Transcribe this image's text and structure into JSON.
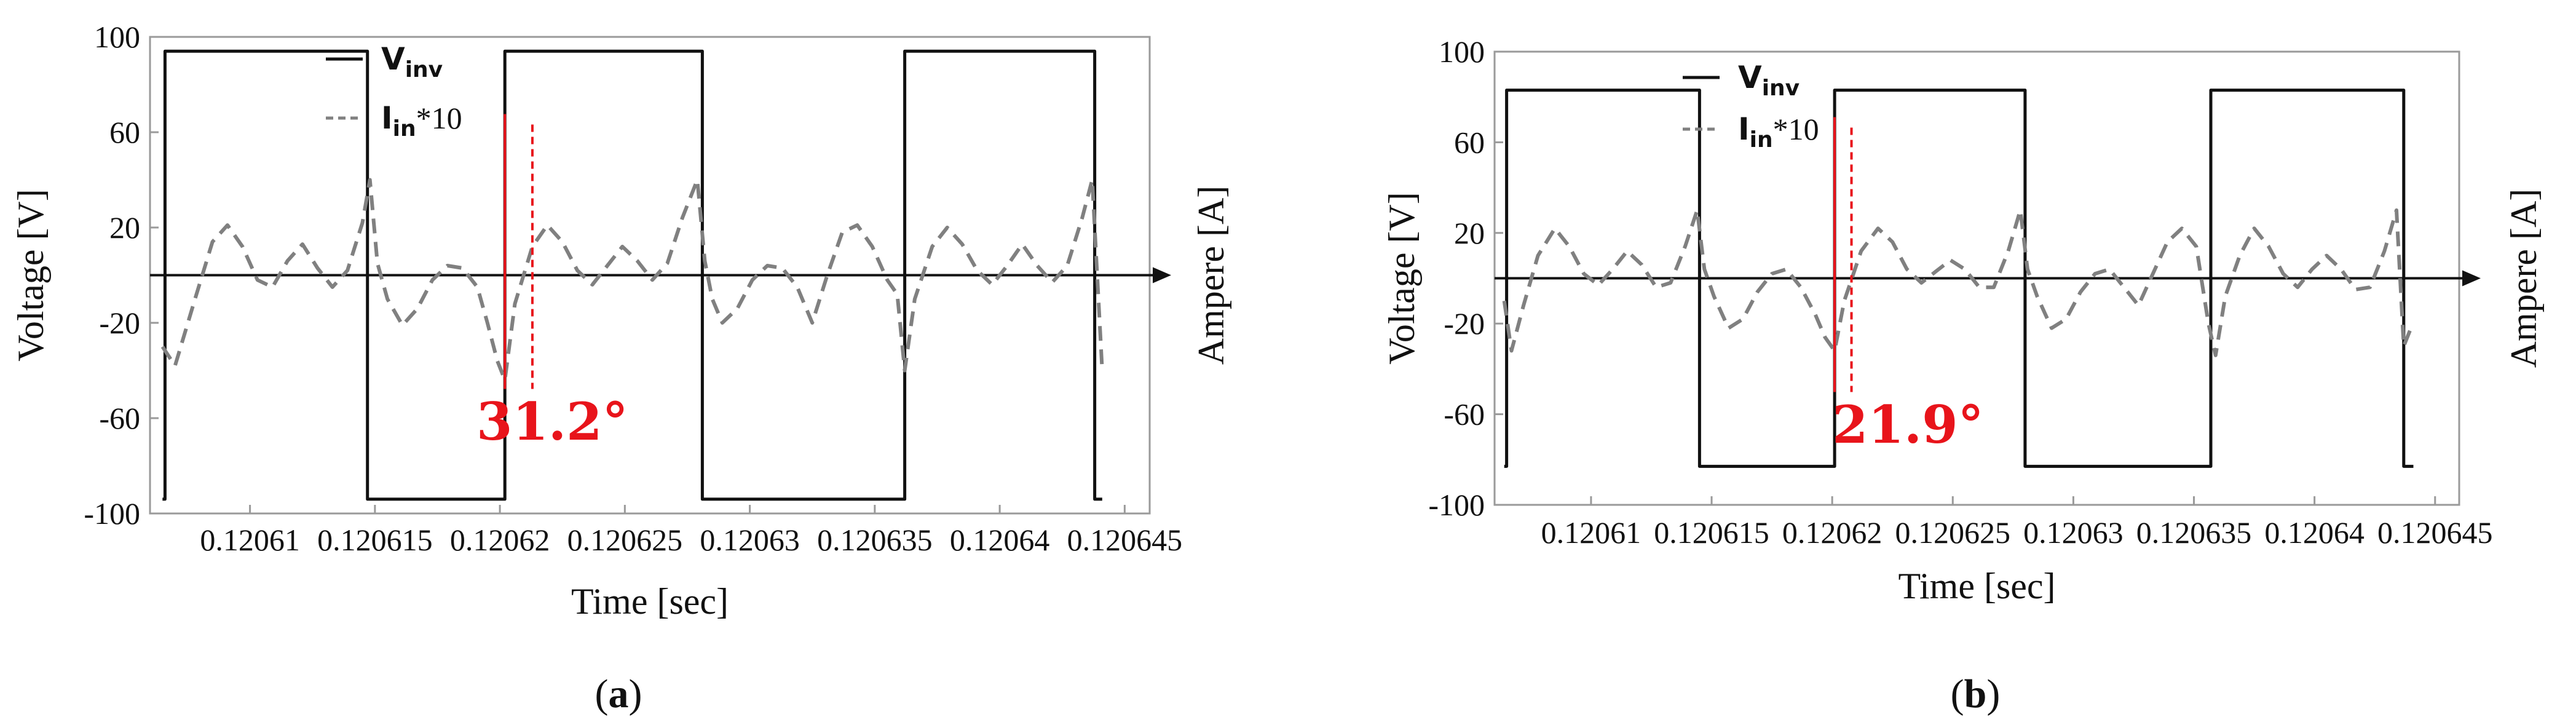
{
  "chart_data": [
    {
      "type": "line",
      "panel_label": "(a)",
      "xlabel": "Time [sec]",
      "ylabel": "Voltage [V]",
      "y2label": "Ampere [A]",
      "xlim": [
        0.120606,
        0.120646
      ],
      "ylim": [
        -100,
        100
      ],
      "x_ticks": [
        "0.12061",
        "0.120615",
        "0.12062",
        "0.120625",
        "0.12063",
        "0.120635",
        "0.12064",
        "0.120645"
      ],
      "x_tick_values": [
        0.12061,
        0.120615,
        0.12062,
        0.120625,
        0.12063,
        0.120635,
        0.12064,
        0.120645
      ],
      "y_ticks": [
        "100",
        "60",
        "20",
        "-20",
        "-60",
        "-100"
      ],
      "y_tick_values": [
        100,
        60,
        20,
        -20,
        -60,
        -100
      ],
      "grid": false,
      "legend_position": "top-right",
      "phase_annotation": {
        "text": "31.2°",
        "color": "#e8141b",
        "x_values": [
          0.1206202,
          0.1206213
        ]
      },
      "series": [
        {
          "name": "V_inv",
          "legend_main": "V",
          "legend_sub": "inv",
          "legend_suffix": "",
          "style": "solid",
          "color": "#111111",
          "x": [
            0.1206065,
            0.1206066,
            0.1206066,
            0.1206147,
            0.1206147,
            0.1206202,
            0.1206202,
            0.1206281,
            0.1206281,
            0.1206362,
            0.1206362,
            0.1206438,
            0.1206438,
            0.1206441
          ],
          "y": [
            -94,
            -94,
            94,
            94,
            -94,
            -94,
            94,
            94,
            -94,
            -94,
            94,
            94,
            -94,
            -94
          ]
        },
        {
          "name": "I_in*10",
          "legend_main": "I",
          "legend_sub": "in",
          "legend_suffix": "*10",
          "style": "dashed",
          "color": "#808080",
          "x": [
            0.1206065,
            0.120607,
            0.1206078,
            0.1206085,
            0.1206091,
            0.1206097,
            0.1206103,
            0.1206109,
            0.1206115,
            0.1206121,
            0.1206127,
            0.1206133,
            0.1206139,
            0.1206145,
            0.1206148,
            0.1206151,
            0.1206155,
            0.1206161,
            0.1206167,
            0.1206173,
            0.1206179,
            0.1206185,
            0.1206191,
            0.1206195,
            0.1206199,
            0.1206202,
            0.1206206,
            0.1206213,
            0.1206219,
            0.1206225,
            0.1206231,
            0.1206237,
            0.1206243,
            0.1206249,
            0.1206255,
            0.1206261,
            0.1206267,
            0.1206273,
            0.1206279,
            0.1206282,
            0.1206285,
            0.1206289,
            0.1206295,
            0.1206301,
            0.1206307,
            0.1206313,
            0.1206319,
            0.1206325,
            0.1206331,
            0.1206337,
            0.1206343,
            0.1206349,
            0.1206355,
            0.1206359,
            0.1206362,
            0.1206366,
            0.1206373,
            0.1206379,
            0.1206385,
            0.1206391,
            0.1206397,
            0.1206403,
            0.1206409,
            0.1206415,
            0.1206421,
            0.1206427,
            0.1206433,
            0.1206437,
            0.1206441
          ],
          "y": [
            -30,
            -38,
            -10,
            14,
            21,
            12,
            -2,
            -5,
            6,
            13,
            3,
            -5,
            2,
            22,
            40,
            5,
            -10,
            -21,
            -14,
            -2,
            4,
            3,
            -5,
            -20,
            -36,
            -44,
            -12,
            12,
            21,
            14,
            2,
            -4,
            4,
            12,
            6,
            -2,
            5,
            24,
            40,
            6,
            -10,
            -20,
            -14,
            -2,
            4,
            3,
            -5,
            -20,
            0,
            18,
            21,
            12,
            -2,
            -8,
            -40,
            -10,
            12,
            20,
            13,
            2,
            -4,
            4,
            13,
            4,
            -3,
            4,
            24,
            40,
            -40
          ]
        }
      ]
    },
    {
      "type": "line",
      "panel_label": "(b)",
      "xlabel": "Time [sec]",
      "ylabel": "Voltage [V]",
      "y2label": "Ampere [A]",
      "xlim": [
        0.120606,
        0.120646
      ],
      "ylim": [
        -100,
        100
      ],
      "x_ticks": [
        "0.12061",
        "0.120615",
        "0.12062",
        "0.120625",
        "0.12063",
        "0.120635",
        "0.12064",
        "0.120645"
      ],
      "x_tick_values": [
        0.12061,
        0.120615,
        0.12062,
        0.120625,
        0.12063,
        0.120635,
        0.12064,
        0.120645
      ],
      "y_ticks": [
        "100",
        "60",
        "20",
        "-20",
        "-60",
        "-100"
      ],
      "y_tick_values": [
        100,
        60,
        20,
        -20,
        -60,
        -100
      ],
      "grid": false,
      "legend_position": "top-right",
      "phase_annotation": {
        "text": "21.9°",
        "color": "#e8141b",
        "x_values": [
          0.1206201,
          0.1206208
        ]
      },
      "series": [
        {
          "name": "V_inv",
          "legend_main": "V",
          "legend_sub": "inv",
          "legend_suffix": "",
          "style": "solid",
          "color": "#111111",
          "x": [
            0.1206064,
            0.1206065,
            0.1206065,
            0.1206145,
            0.1206145,
            0.1206201,
            0.1206201,
            0.120628,
            0.120628,
            0.1206357,
            0.1206357,
            0.1206437,
            0.1206437,
            0.1206441
          ],
          "y": [
            -83,
            -83,
            83,
            83,
            -83,
            -83,
            83,
            83,
            -83,
            -83,
            83,
            83,
            -83,
            -83
          ]
        },
        {
          "name": "I_in*10",
          "legend_main": "I",
          "legend_sub": "in",
          "legend_suffix": "*10",
          "style": "dashed",
          "color": "#808080",
          "x": [
            0.1206064,
            0.1206067,
            0.1206072,
            0.1206078,
            0.1206085,
            0.1206091,
            0.1206097,
            0.1206103,
            0.1206109,
            0.1206115,
            0.1206121,
            0.1206127,
            0.1206133,
            0.1206139,
            0.1206144,
            0.1206147,
            0.1206151,
            0.1206157,
            0.1206163,
            0.1206169,
            0.1206175,
            0.1206181,
            0.1206187,
            0.1206193,
            0.1206197,
            0.1206201,
            0.1206205,
            0.1206212,
            0.1206219,
            0.1206225,
            0.1206231,
            0.1206237,
            0.1206243,
            0.1206249,
            0.1206255,
            0.1206261,
            0.1206267,
            0.1206273,
            0.1206278,
            0.1206281,
            0.1206285,
            0.1206291,
            0.1206297,
            0.1206303,
            0.1206309,
            0.1206315,
            0.1206321,
            0.1206327,
            0.1206333,
            0.1206339,
            0.1206345,
            0.1206351,
            0.1206356,
            0.1206359,
            0.1206363,
            0.1206369,
            0.1206375,
            0.1206381,
            0.1206387,
            0.1206393,
            0.1206399,
            0.1206405,
            0.1206411,
            0.1206417,
            0.1206423,
            0.1206429,
            0.1206434,
            0.1206437,
            0.120644
          ],
          "y": [
            -10,
            -32,
            -12,
            10,
            22,
            14,
            2,
            -3,
            4,
            12,
            6,
            -4,
            -2,
            14,
            30,
            4,
            -8,
            -22,
            -18,
            -6,
            2,
            4,
            -4,
            -16,
            -26,
            -32,
            -10,
            12,
            22,
            16,
            4,
            -2,
            3,
            8,
            4,
            -4,
            -4,
            12,
            30,
            4,
            -8,
            -22,
            -18,
            -6,
            2,
            4,
            -4,
            -12,
            2,
            16,
            22,
            14,
            -20,
            -34,
            -8,
            10,
            22,
            14,
            2,
            -4,
            4,
            10,
            4,
            -5,
            -4,
            12,
            30,
            -30,
            -22
          ]
        }
      ]
    }
  ]
}
